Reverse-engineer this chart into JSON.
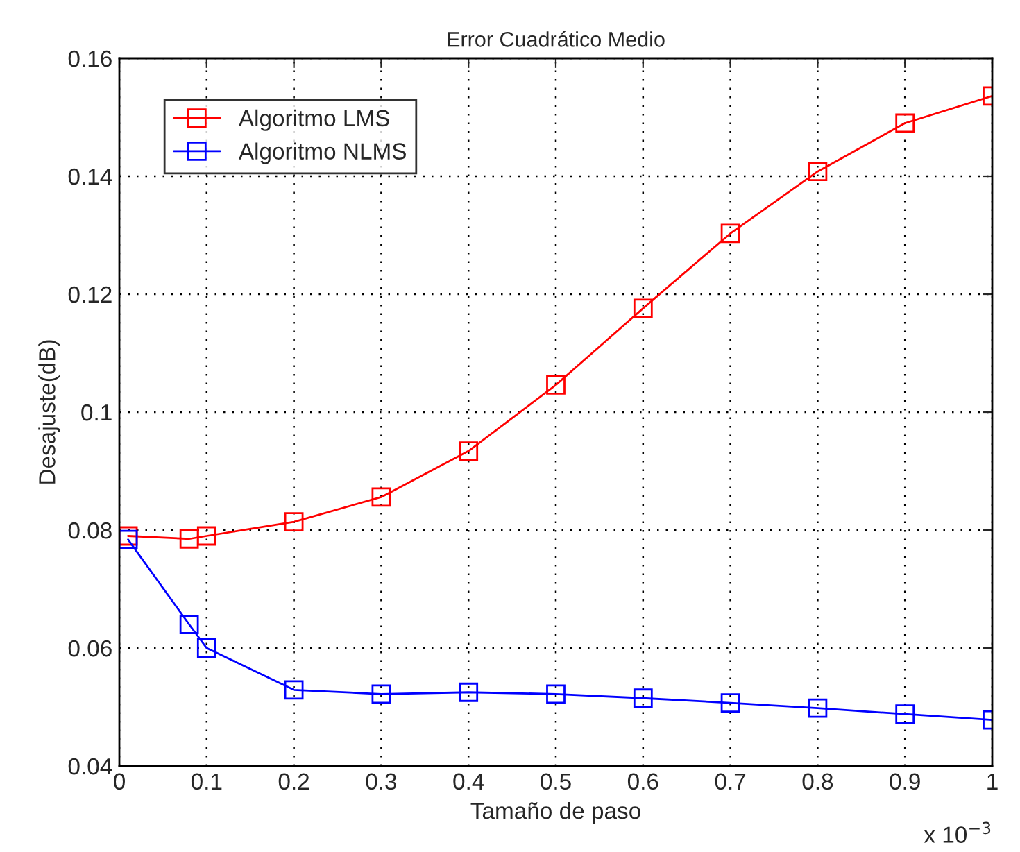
{
  "chart_data": {
    "type": "line",
    "title": "Error Cuadrático Medio",
    "xlabel": "Tamaño de paso",
    "ylabel": "Desajuste(dB)",
    "x": [
      0.01,
      0.08,
      0.1,
      0.2,
      0.3,
      0.4,
      0.5,
      0.6,
      0.7,
      0.8,
      0.9,
      1.0
    ],
    "series": [
      {
        "name": "Algoritmo LMS",
        "color": "#ff0000",
        "values": [
          0.079,
          0.0785,
          0.079,
          0.0814,
          0.0856,
          0.0934,
          0.1046,
          0.1176,
          0.1303,
          0.1408,
          0.149,
          0.1536
        ]
      },
      {
        "name": "Algoritmo NLMS",
        "color": "#0000ff",
        "values": [
          0.0784,
          0.064,
          0.06,
          0.0529,
          0.0522,
          0.0525,
          0.0522,
          0.0515,
          0.0507,
          0.0498,
          0.0488,
          0.0478
        ]
      }
    ],
    "xlim": [
      0,
      1
    ],
    "xticks": [
      0,
      0.1,
      0.2,
      0.3,
      0.4,
      0.5,
      0.6,
      0.7,
      0.8,
      0.9,
      1
    ],
    "ylim": [
      0.04,
      0.16
    ],
    "yticks": [
      0.04,
      0.06,
      0.08,
      0.1,
      0.12,
      0.14,
      0.16
    ],
    "annotations": [
      "x 10$^{−3}$"
    ],
    "grid": true,
    "legend": "top left",
    "marker": "square",
    "line_style": "solid"
  }
}
